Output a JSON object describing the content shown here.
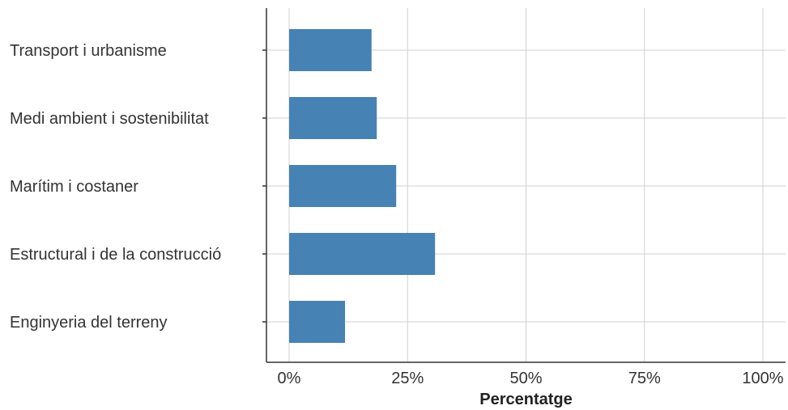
{
  "chart_data": {
    "type": "bar",
    "orientation": "horizontal",
    "categories": [
      "Transport i urbanisme",
      "Medi ambient i sostenibilitat",
      "Marítim i costaner",
      "Estructural i de la construcció",
      "Enginyeria del terreny"
    ],
    "values": [
      17.4,
      18.5,
      22.6,
      30.8,
      11.8
    ],
    "unit": "%",
    "xlabel": "Percentatge",
    "ylabel": "",
    "xlim": [
      0,
      100
    ],
    "xticks": [
      "0%",
      "25%",
      "50%",
      "75%",
      "100%"
    ],
    "grid": true,
    "legend": "none",
    "bar_color": "#4682b4",
    "grid_color": "#d0d0d0",
    "axis_color": "#333333"
  }
}
